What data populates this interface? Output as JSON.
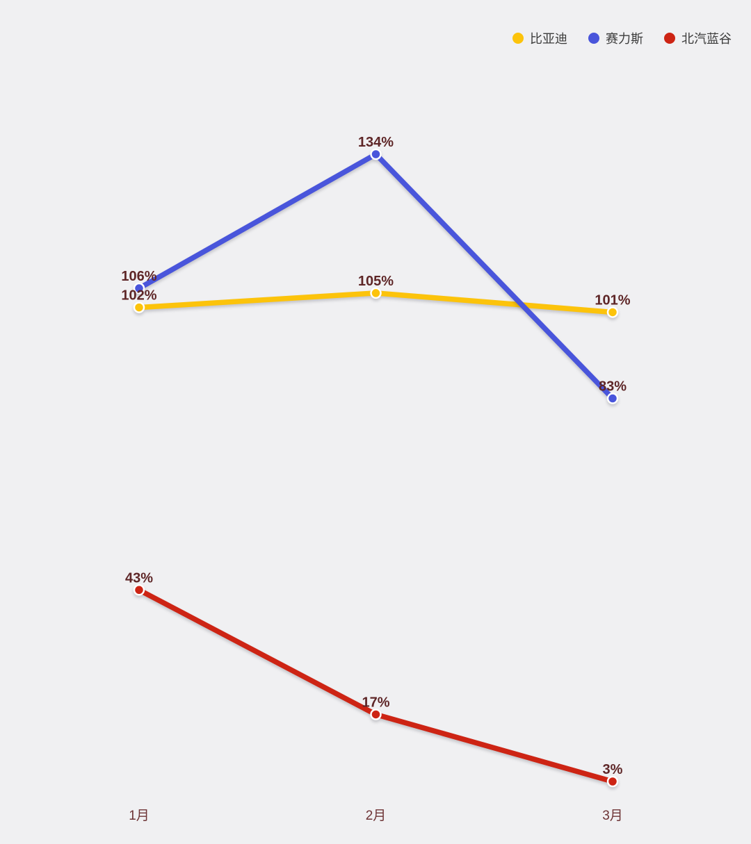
{
  "background_color": "#f0f0f2",
  "chart_data": {
    "type": "line",
    "title": "",
    "xlabel": "",
    "ylabel": "",
    "categories": [
      "1月",
      "2月",
      "3月"
    ],
    "series": [
      {
        "name": "比亚迪",
        "color": "#fcc30b",
        "values": [
          102,
          105,
          101
        ],
        "labels": [
          "102%",
          "105%",
          "101%"
        ]
      },
      {
        "name": "赛力斯",
        "color": "#4955db",
        "values": [
          106,
          134,
          83
        ],
        "labels": [
          "106%",
          "134%",
          "83%"
        ]
      },
      {
        "name": "北汽蓝谷",
        "color": "#cd2414",
        "values": [
          43,
          17,
          3
        ],
        "labels": [
          "43%",
          "17%",
          "3%"
        ]
      }
    ],
    "unit": "%",
    "ylim": [
      3,
      134
    ],
    "grid": false,
    "legend_position": "top-right",
    "label_color": "#5e2627",
    "axis_label_color": "#6d3335",
    "legend_text_color": "#3c3c3c",
    "point_border_color": "#ffffff"
  }
}
